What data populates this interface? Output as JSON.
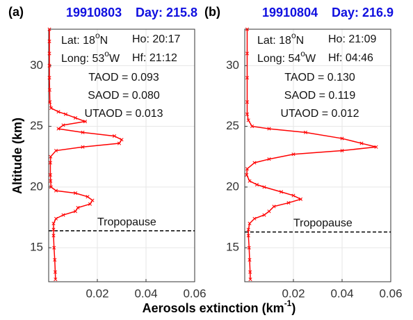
{
  "labels": {
    "ylabel": "Altitude (km)",
    "xlabel": [
      "Aerosols extinction (km",
      "-1",
      ")"
    ]
  },
  "chart_data": [
    {
      "type": "line",
      "panel": "(a)",
      "date": "19910803",
      "day": "Day: 215.8",
      "lat": [
        "Lat: 18",
        "o",
        "N"
      ],
      "long": [
        "Long: 53",
        "o",
        "W"
      ],
      "ho": "Ho: 20:17",
      "hf": "Hf: 21:12",
      "taod": "TAOD = 0.093",
      "saod": "SAOD = 0.080",
      "utaod": "UTAOD = 0.013",
      "tropopause": {
        "label": "Tropopause",
        "value": 16.4
      },
      "xlim": [
        0,
        0.06
      ],
      "xticks": [
        0.02,
        0.04,
        0.06
      ],
      "ylim": [
        12.2,
        33
      ],
      "yticks": [
        15,
        20,
        25,
        30
      ],
      "grid": true,
      "altitude": [
        33,
        32,
        31,
        30,
        29,
        28,
        27,
        26.5,
        26.2,
        26.0,
        25.7,
        25.4,
        25.1,
        24.8,
        24.5,
        24.2,
        23.9,
        23.6,
        23.3,
        23.0,
        22.5,
        22,
        21,
        20.5,
        20.0,
        19.7,
        19.5,
        19.2,
        18.9,
        18.6,
        18.3,
        18.0,
        17.7,
        17.4,
        17.0,
        16.5,
        16.0,
        15,
        14,
        13,
        12.4
      ],
      "series": [
        {
          "color": "#ff0000",
          "values": [
            0.0003,
            0.0003,
            0.0003,
            0.0003,
            0.0003,
            0.0004,
            0.0005,
            0.001,
            0.004,
            0.007,
            0.011,
            0.015,
            0.006,
            0.004,
            0.014,
            0.027,
            0.03,
            0.029,
            0.014,
            0.003,
            0.0008,
            0.0007,
            0.0007,
            0.0008,
            0.001,
            0.003,
            0.011,
            0.016,
            0.018,
            0.017,
            0.012,
            0.011,
            0.006,
            0.003,
            0.002,
            0.002,
            0.002,
            0.0022,
            0.0025,
            0.0027,
            0.0028
          ]
        }
      ]
    },
    {
      "type": "line",
      "panel": "(b)",
      "date": "19910804",
      "day": "Day: 216.9",
      "lat": [
        "Lat: 18",
        "o",
        "N"
      ],
      "long": [
        "Long: 54",
        "o",
        "W"
      ],
      "ho": "Ho: 21:09",
      "hf": "Hf: 04:46",
      "taod": "TAOD = 0.130",
      "saod": "SAOD = 0.119",
      "utaod": "UTAOD = 0.012",
      "tropopause": {
        "label": "Tropopause",
        "value": 16.3
      },
      "xlim": [
        0,
        0.06
      ],
      "xticks": [
        0.02,
        0.04,
        0.06
      ],
      "ylim": [
        12.2,
        33
      ],
      "yticks": [
        15,
        20,
        25,
        30
      ],
      "grid": true,
      "altitude": [
        33,
        31,
        29,
        27,
        26,
        25.5,
        25.0,
        24.8,
        24.5,
        24.0,
        23.6,
        23.3,
        23.0,
        22.7,
        22.3,
        22.0,
        21.5,
        21.0,
        20.5,
        20.2,
        20.0,
        19.6,
        19.3,
        19.0,
        18.7,
        18.4,
        18.0,
        17.7,
        17.4,
        17.0,
        16.5,
        16,
        15,
        14,
        13,
        12.4
      ],
      "series": [
        {
          "color": "#ff0000",
          "values": [
            0.001,
            0.001,
            0.001,
            0.001,
            0.001,
            0.0015,
            0.003,
            0.01,
            0.025,
            0.04,
            0.048,
            0.054,
            0.04,
            0.02,
            0.01,
            0.004,
            0.001,
            0.0008,
            0.002,
            0.005,
            0.008,
            0.015,
            0.02,
            0.023,
            0.018,
            0.012,
            0.01,
            0.008,
            0.004,
            0.002,
            0.0015,
            0.0015,
            0.0018,
            0.002,
            0.0022,
            0.0023
          ]
        }
      ]
    }
  ]
}
